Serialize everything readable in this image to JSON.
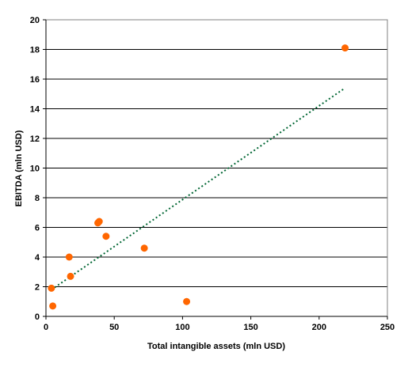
{
  "chart_data": {
    "type": "scatter",
    "xlabel": "Total intangible assets (mln USD)",
    "ylabel": "EBITDA (mln USD)",
    "xlim": [
      0,
      250
    ],
    "ylim": [
      0,
      20
    ],
    "x_ticks": [
      "0",
      "50",
      "100",
      "150",
      "200",
      "250"
    ],
    "y_ticks": [
      "0",
      "2",
      "4",
      "6",
      "8",
      "10",
      "12",
      "14",
      "16",
      "18",
      "20"
    ],
    "grid": "horizontal",
    "legend": "none",
    "points": [
      {
        "x": 4,
        "y": 1.9
      },
      {
        "x": 5,
        "y": 0.7
      },
      {
        "x": 17,
        "y": 4.0
      },
      {
        "x": 18,
        "y": 2.7
      },
      {
        "x": 38,
        "y": 6.3
      },
      {
        "x": 39,
        "y": 6.4
      },
      {
        "x": 44,
        "y": 5.4
      },
      {
        "x": 72,
        "y": 4.6
      },
      {
        "x": 103,
        "y": 1.0
      },
      {
        "x": 219,
        "y": 18.1
      }
    ],
    "trendline": {
      "x1": 4,
      "y1": 1.8,
      "x2": 219,
      "y2": 15.4
    },
    "colors": {
      "points": "#ff6600",
      "trendline": "#006633",
      "grid": "#000000"
    }
  }
}
